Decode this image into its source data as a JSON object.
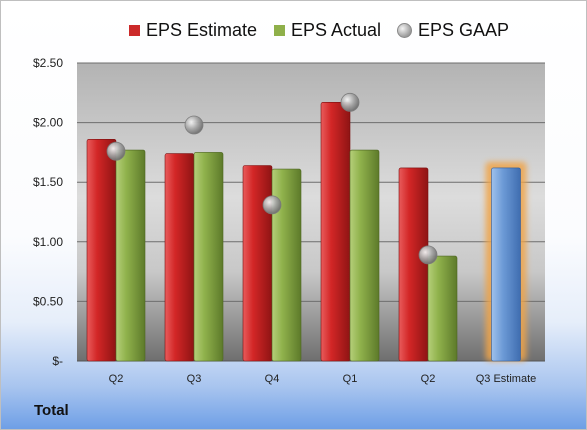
{
  "chart_data": {
    "type": "bar",
    "categories": [
      "Q2",
      "Q3",
      "Q4",
      "Q1",
      "Q2",
      "Q3 Estimate"
    ],
    "series": [
      {
        "name": "EPS Estimate",
        "color": "#cc2a2a",
        "values": [
          1.86,
          1.74,
          1.64,
          2.17,
          1.62,
          null
        ]
      },
      {
        "name": "EPS Actual",
        "color": "#8fb04a",
        "values": [
          1.77,
          1.75,
          1.61,
          1.77,
          0.88,
          null
        ]
      },
      {
        "name": "EPS GAAP",
        "color": "#9a9a9a",
        "marker": "circle",
        "values": [
          1.76,
          1.98,
          1.31,
          2.17,
          0.89,
          null
        ]
      }
    ],
    "highlight": {
      "category": "Q3 Estimate",
      "value": 1.62,
      "color": "#6c9ad6",
      "glow_color": "#f0a44a"
    },
    "yticks": [
      "$-",
      "$0.50",
      "$1.00",
      "$1.50",
      "$2.00",
      "$2.50"
    ],
    "ylim": [
      0,
      2.5
    ],
    "grid": true,
    "legend_position": "top",
    "footer_label": "Total"
  }
}
